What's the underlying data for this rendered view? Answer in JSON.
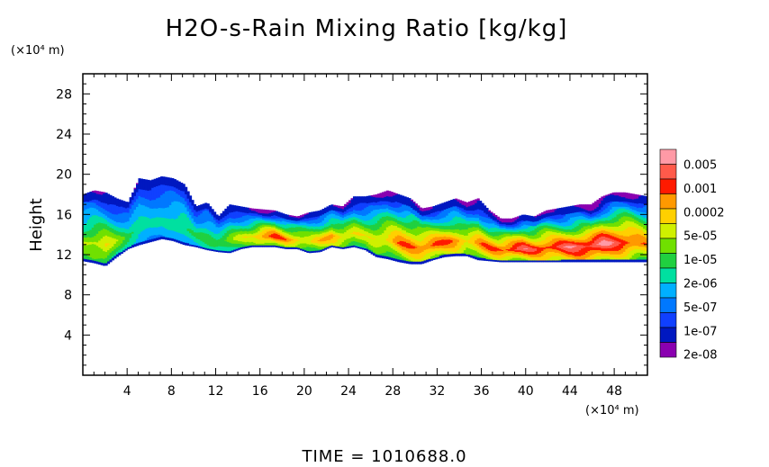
{
  "chart_data": {
    "type": "heatmap",
    "title": "H2O-s-Rain Mixing Ratio [kg/kg]",
    "ylabel": "Height",
    "y_unit": "(×10⁴ m)",
    "x_unit": "(×10⁴ m)",
    "xlim": [
      0,
      51
    ],
    "ylim": [
      0,
      30
    ],
    "x_ticks": [
      4,
      8,
      12,
      16,
      20,
      24,
      28,
      32,
      36,
      40,
      44,
      48
    ],
    "y_ticks": [
      4,
      8,
      12,
      16,
      20,
      24,
      28
    ],
    "legend": {
      "labels": [
        "0.005",
        "0.001",
        "0.0002",
        "5e-05",
        "1e-05",
        "2e-06",
        "5e-07",
        "1e-07",
        "2e-08"
      ],
      "colors": [
        "#ff9aa6",
        "#ff5a4a",
        "#ff1a00",
        "#ff9900",
        "#ffd000",
        "#d0f000",
        "#70e000",
        "#20d040",
        "#00e0a0",
        "#00b0ff",
        "#0078ff",
        "#1040ff",
        "#0018c0",
        "#8a00b0"
      ]
    },
    "cloud_band": {
      "top": [
        18,
        18.4,
        18.2,
        17.6,
        17.2,
        19.6,
        19.4,
        19.8,
        19.6,
        19,
        16.8,
        17.2,
        15.8,
        17,
        16.8,
        16.6,
        16.5,
        16.4,
        16,
        15.8,
        16.2,
        16.4,
        17,
        16.8,
        17.8,
        17.8,
        18,
        18.4,
        18,
        17.6,
        16.6,
        16.8,
        17.2,
        17.6,
        17.2,
        17.6,
        16.4,
        15.6,
        15.6,
        16,
        15.8,
        16.4,
        16.6,
        16.8,
        17,
        17,
        17.8,
        18.2,
        18.2,
        18,
        17.8
      ],
      "bottom": [
        11.4,
        11.2,
        10.9,
        11.8,
        12.6,
        13,
        13.3,
        13.6,
        13.4,
        13,
        12.8,
        12.5,
        12.3,
        12.2,
        12.6,
        12.8,
        12.8,
        12.8,
        12.6,
        12.6,
        12.2,
        12.3,
        12.8,
        12.6,
        12.8,
        12.5,
        11.8,
        11.6,
        11.3,
        11.1,
        11.1,
        11.5,
        11.8,
        11.9,
        11.9,
        11.5,
        11.4,
        11.3,
        11.3,
        11.3,
        11.3,
        11.3,
        11.3,
        11.3,
        11.3,
        11.3,
        11.3,
        11.3,
        11.3,
        11.3,
        11.3
      ],
      "peak": [
        0.5,
        0.55,
        0.6,
        0.45,
        0.35,
        0.3,
        0.25,
        0.25,
        0.3,
        0.35,
        0.35,
        0.4,
        0.4,
        0.45,
        0.5,
        0.55,
        0.7,
        0.75,
        0.7,
        0.65,
        0.6,
        0.65,
        0.7,
        0.6,
        0.55,
        0.5,
        0.55,
        0.6,
        0.7,
        0.75,
        0.8,
        0.8,
        0.75,
        0.7,
        0.6,
        0.65,
        0.7,
        0.75,
        0.8,
        0.85,
        0.85,
        0.85,
        0.85,
        0.85,
        0.85,
        0.85,
        0.85,
        0.8,
        0.8,
        0.75,
        0.7
      ]
    }
  },
  "footer": {
    "time_text": "TIME = 1010688.0"
  }
}
